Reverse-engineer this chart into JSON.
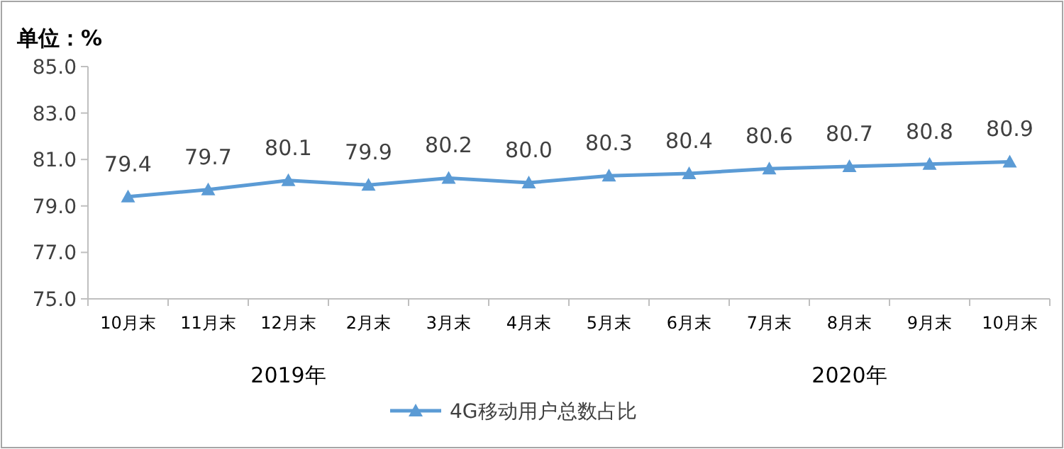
{
  "chart_data": {
    "type": "line",
    "ylabel": "单位：%",
    "categories": [
      "10月末",
      "11月末",
      "12月末",
      "2月末",
      "3月末",
      "4月末",
      "5月末",
      "6月末",
      "7月末",
      "8月末",
      "9月末",
      "10月末"
    ],
    "series": [
      {
        "name": "4G移动用户总数占比",
        "color": "#5b9bd5",
        "values": [
          79.4,
          79.7,
          80.1,
          79.9,
          80.2,
          80.0,
          80.3,
          80.4,
          80.6,
          80.7,
          80.8,
          80.9
        ],
        "value_labels": [
          "79.4",
          "79.7",
          "80.1",
          "79.9",
          "80.2",
          "80.0",
          "80.3",
          "80.4",
          "80.6",
          "80.7",
          "80.8",
          "80.9"
        ]
      }
    ],
    "ylim": [
      75,
      85
    ],
    "yticks": [
      {
        "value": 75,
        "label": "75.0"
      },
      {
        "value": 77,
        "label": "77.0"
      },
      {
        "value": 79,
        "label": "79.0"
      },
      {
        "value": 81,
        "label": "81.0"
      },
      {
        "value": 83,
        "label": "83.0"
      },
      {
        "value": 85,
        "label": "85.0"
      }
    ],
    "annotations": [
      "2019年",
      "2020年"
    ],
    "marker": "triangle",
    "legend": "bottom"
  }
}
